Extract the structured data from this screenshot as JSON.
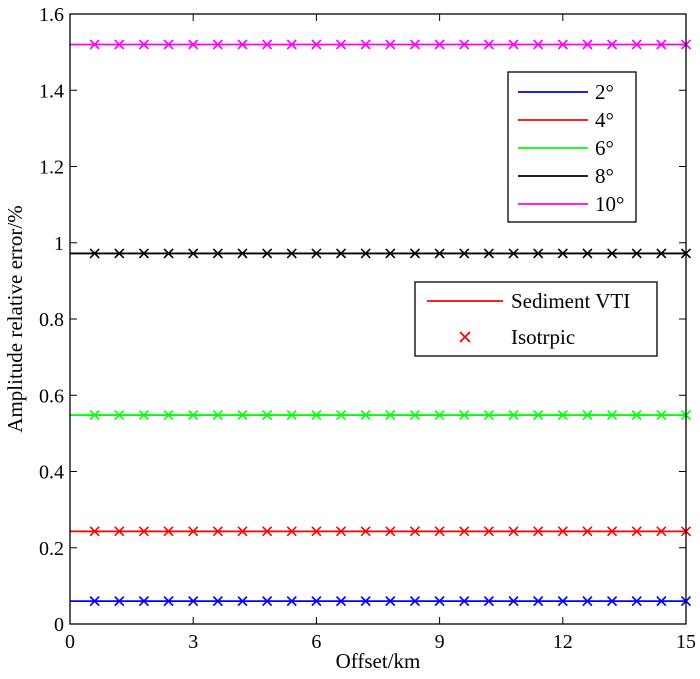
{
  "chart_data": {
    "type": "line",
    "title": "",
    "xlabel": "Offset/km",
    "ylabel": "Amplitude relative error/%",
    "xlim": [
      0,
      15
    ],
    "ylim": [
      0,
      1.6
    ],
    "x_ticks": [
      0,
      3,
      6,
      9,
      12,
      15
    ],
    "x_tick_labels": [
      "0",
      "3",
      "6",
      "9",
      "12",
      "15"
    ],
    "y_ticks": [
      0,
      0.2,
      0.4,
      0.6,
      0.8,
      1.0,
      1.2,
      1.4,
      1.6
    ],
    "y_tick_labels": [
      "0",
      "0.2",
      "0.4",
      "0.6",
      "0.8",
      "1",
      "1.2",
      "1.4",
      "1.6"
    ],
    "marker_x": [
      0.6,
      1.2,
      1.8,
      2.4,
      3.0,
      3.6,
      4.2,
      4.8,
      5.4,
      6.0,
      6.6,
      7.2,
      7.8,
      8.4,
      9.0,
      9.6,
      10.2,
      10.8,
      11.4,
      12.0,
      12.6,
      13.2,
      13.8,
      14.4,
      15.0
    ],
    "series": [
      {
        "name": "2°",
        "color": "#0000ff",
        "line_value": 0.06,
        "marker_value": 0.06
      },
      {
        "name": "4°",
        "color": "#ff0000",
        "line_value": 0.243,
        "marker_value": 0.243
      },
      {
        "name": "6°",
        "color": "#00ff00",
        "line_value": 0.548,
        "marker_value": 0.548
      },
      {
        "name": "8°",
        "color": "#000000",
        "line_value": 0.972,
        "marker_value": 0.972
      },
      {
        "name": "10°",
        "color": "#ff00ff",
        "line_value": 1.52,
        "marker_value": 1.52
      }
    ],
    "legend_angles": {
      "position": "top-right",
      "entries": [
        "2°",
        "4°",
        "6°",
        "8°",
        "10°"
      ]
    },
    "legend_styles": {
      "position": "right",
      "entries": [
        {
          "label": "Sediment VTI",
          "style": "line",
          "color": "#ff0000"
        },
        {
          "label": "Isotrpic",
          "style": "x-marker",
          "color": "#ff0000"
        }
      ]
    }
  }
}
